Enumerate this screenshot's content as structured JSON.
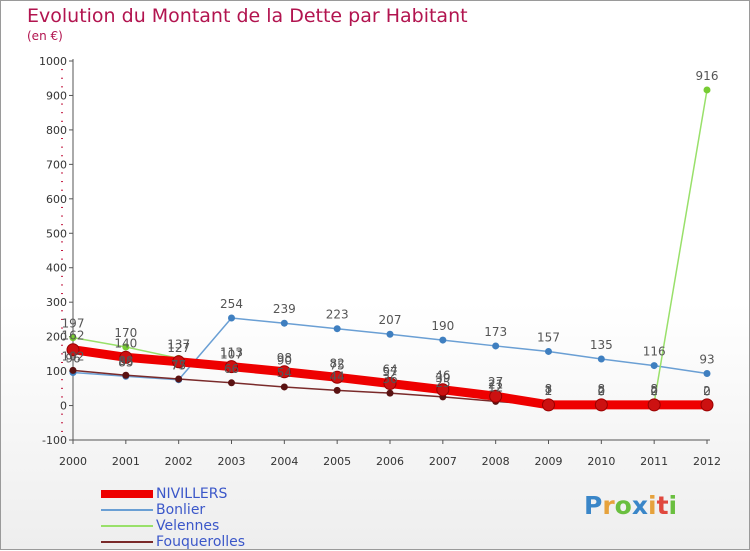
{
  "header": {
    "title": "Evolution du Montant de la Dette par Habitant",
    "subtitle": "(en €)"
  },
  "logo": {
    "text": "Proxiti",
    "colors": [
      "#3a86c8",
      "#e6a23c",
      "#6abf3f",
      "#3a86c8",
      "#e6a23c",
      "#e0483e",
      "#6abf3f"
    ]
  },
  "colors": {
    "title": "#b2144f",
    "legend_text": "#3b57c9",
    "axis": "#555555",
    "tick_mark": "#c0143c"
  },
  "chart_data": {
    "type": "line",
    "x": [
      "2000",
      "2001",
      "2002",
      "2003",
      "2004",
      "2005",
      "2006",
      "2007",
      "2008",
      "2009",
      "2010",
      "2011",
      "2012"
    ],
    "yticks": [
      "-100",
      "0",
      "100",
      "200",
      "300",
      "400",
      "500",
      "600",
      "700",
      "800",
      "900",
      "1000"
    ],
    "ylim": [
      -100,
      1000
    ],
    "legend_position": "bottom-left",
    "series": [
      {
        "name": "NIVILLERS",
        "color": "#ee0000",
        "marker": "#cc1111",
        "values": [
          162,
          140,
          127,
          113,
          98,
          82,
          64,
          46,
          27,
          2,
          2,
          2,
          2
        ],
        "labels": [
          "162",
          "140",
          "127",
          "113",
          "98",
          "82",
          "64",
          "46",
          "27",
          "2",
          "2",
          "2",
          "2"
        ]
      },
      {
        "name": "Bonlier",
        "color": "#6a9fd4",
        "marker": "#3f7fc0",
        "values": [
          96,
          85,
          75,
          254,
          239,
          223,
          207,
          190,
          173,
          157,
          135,
          116,
          93
        ],
        "labels": [
          "96",
          "85",
          "75",
          "254",
          "239",
          "223",
          "207",
          "190",
          "173",
          "157",
          "135",
          "116",
          "93"
        ]
      },
      {
        "name": "Velennes",
        "color": "#99e06a",
        "marker": "#77cc33",
        "values": [
          197,
          170,
          137,
          107,
          90,
          75,
          57,
          39,
          21,
          8,
          8,
          8,
          916
        ],
        "labels": [
          "197",
          "170",
          "137",
          "107",
          "90",
          "75",
          "57",
          "39",
          "21",
          "8",
          "8",
          "8",
          "916"
        ]
      },
      {
        "name": "Fouquerolles",
        "color": "#7a2a2a",
        "marker": "#5a1212",
        "values": [
          102,
          88,
          77,
          66,
          54,
          44,
          36,
          25,
          12,
          1,
          0,
          0,
          0
        ],
        "labels": [
          "102",
          "88",
          "77",
          "66",
          "54",
          "44",
          "36",
          "25",
          "12",
          "1",
          "0",
          "0",
          "0"
        ]
      }
    ]
  }
}
